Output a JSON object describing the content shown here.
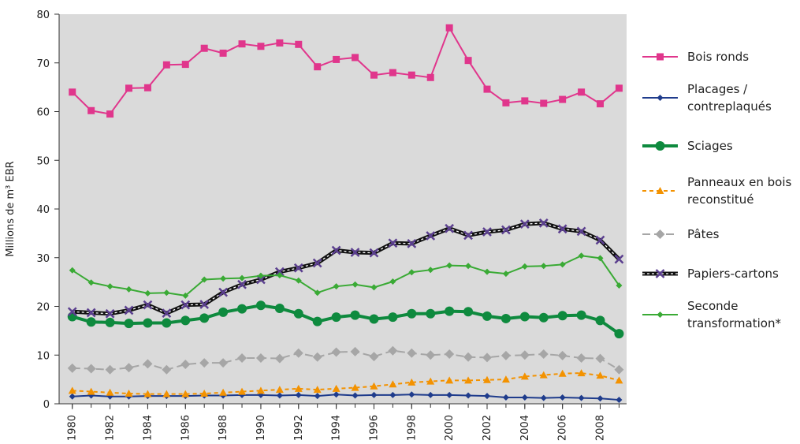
{
  "chart_data": {
    "type": "line",
    "y_label": "Millions de m³ EBR",
    "x": [
      1980,
      1981,
      1982,
      1983,
      1984,
      1985,
      1986,
      1987,
      1988,
      1989,
      1990,
      1991,
      1992,
      1993,
      1994,
      1995,
      1996,
      1997,
      1998,
      1999,
      2000,
      2001,
      2002,
      2003,
      2004,
      2005,
      2006,
      2007,
      2008,
      2009
    ],
    "xlim": [
      1979.3,
      2009.4
    ],
    "xticks": [
      1980,
      1982,
      1984,
      1986,
      1988,
      1990,
      1992,
      1994,
      1996,
      1998,
      2000,
      2002,
      2004,
      2006,
      2008
    ],
    "ylim": [
      0,
      80
    ],
    "yticks": [
      0,
      10,
      20,
      30,
      40,
      50,
      60,
      70,
      80
    ],
    "grid": false,
    "legend": "right",
    "series": [
      {
        "name": "Bois ronds",
        "color": "#e0368c",
        "marker": "square",
        "width": 2,
        "values": [
          64,
          60.2,
          59.5,
          64.8,
          64.9,
          69.6,
          69.7,
          73,
          72,
          73.9,
          73.4,
          74.1,
          73.8,
          69.2,
          70.7,
          71.1,
          67.5,
          68,
          67.5,
          67,
          77.2,
          70.5,
          64.6,
          61.8,
          62.2,
          61.7,
          62.5,
          64,
          61.6,
          64.8
        ]
      },
      {
        "name": "Placages / contreplaqués",
        "color": "#1f3c8c",
        "marker": "diamond-small",
        "width": 2,
        "values": [
          1.5,
          1.7,
          1.5,
          1.5,
          1.6,
          1.6,
          1.6,
          1.7,
          1.7,
          1.8,
          1.8,
          1.7,
          1.8,
          1.6,
          1.9,
          1.7,
          1.8,
          1.8,
          1.9,
          1.8,
          1.8,
          1.7,
          1.6,
          1.3,
          1.3,
          1.2,
          1.3,
          1.2,
          1.1,
          0.8
        ]
      },
      {
        "name": "Sciages",
        "color": "#0e8a3e",
        "marker": "circle",
        "width": 4,
        "values": [
          17.9,
          16.8,
          16.7,
          16.5,
          16.6,
          16.6,
          17.1,
          17.6,
          18.8,
          19.5,
          20.2,
          19.6,
          18.5,
          16.9,
          17.8,
          18.2,
          17.4,
          17.8,
          18.5,
          18.5,
          19,
          18.9,
          18,
          17.5,
          17.9,
          17.7,
          18.1,
          18.2,
          17.1,
          14.4
        ]
      },
      {
        "name": "Panneaux en bois reconstitué",
        "color": "#f39200",
        "marker": "triangle",
        "width": 2,
        "dash": "5,4",
        "values": [
          2.7,
          2.5,
          2.3,
          2.1,
          2,
          2,
          2,
          2.1,
          2.3,
          2.5,
          2.7,
          2.9,
          3.1,
          2.9,
          3.1,
          3.3,
          3.6,
          4,
          4.4,
          4.6,
          4.8,
          4.8,
          4.9,
          5,
          5.6,
          5.9,
          6.2,
          6.3,
          5.8,
          4.8
        ]
      },
      {
        "name": "Pâtes",
        "color": "#a6a6a6",
        "marker": "diamond",
        "width": 2,
        "dash": "10,5",
        "values": [
          7.3,
          7.2,
          7,
          7.4,
          8.2,
          7,
          8.1,
          8.4,
          8.4,
          9.4,
          9.4,
          9.3,
          10.4,
          9.6,
          10.6,
          10.7,
          9.7,
          10.9,
          10.4,
          10,
          10.2,
          9.6,
          9.5,
          9.9,
          10,
          10.2,
          9.9,
          9.4,
          9.3,
          7
        ]
      },
      {
        "name": "Papiers-cartons",
        "color": "#5b3f8f",
        "marker": "cross",
        "width": 5,
        "dash": "3,3",
        "values": [
          18.9,
          18.7,
          18.5,
          19.2,
          20.3,
          18.6,
          20.3,
          20.4,
          22.9,
          24.5,
          25.5,
          27.1,
          27.9,
          28.9,
          31.5,
          31.1,
          31,
          33,
          32.9,
          34.5,
          36,
          34.6,
          35.3,
          35.7,
          36.9,
          37.1,
          35.9,
          35.4,
          33.6,
          29.7
        ]
      },
      {
        "name": "Seconde transformation*",
        "color": "#3aaa35",
        "marker": "diamond-small",
        "width": 2,
        "values": [
          27.4,
          24.9,
          24.1,
          23.5,
          22.7,
          22.8,
          22.2,
          25.5,
          25.7,
          25.8,
          26.3,
          26.4,
          25.3,
          22.8,
          24.1,
          24.5,
          23.9,
          25.1,
          27,
          27.5,
          28.4,
          28.3,
          27.1,
          26.7,
          28.2,
          28.3,
          28.6,
          30.4,
          29.9,
          24.3
        ]
      }
    ]
  }
}
